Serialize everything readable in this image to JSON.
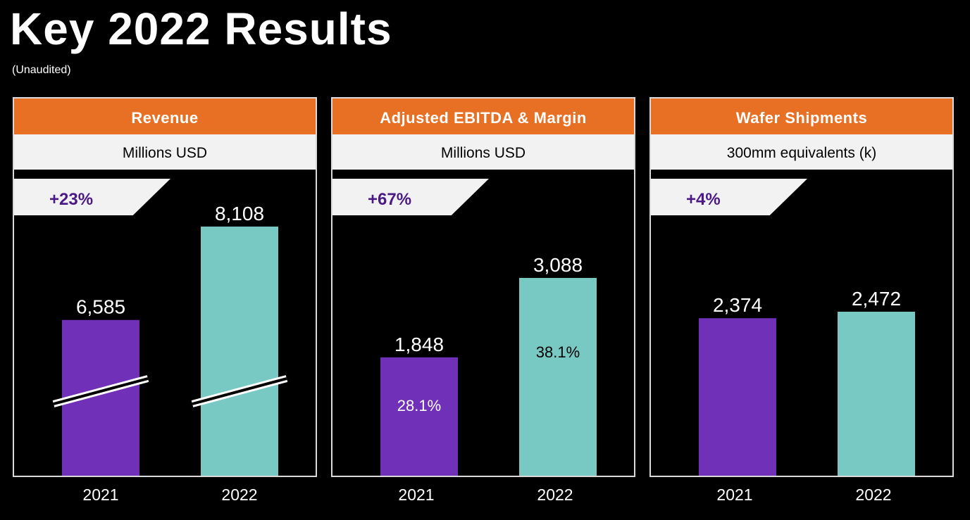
{
  "title": "Key 2022 Results",
  "subtitle": "(Unaudited)",
  "colors": {
    "header": "#e87024",
    "bar_2021": "#7030b8",
    "bar_2022": "#78c8c3",
    "growth_text": "#4b1a86"
  },
  "panels": [
    {
      "header": "Revenue",
      "units": "Millions USD",
      "growth": "+23%"
    },
    {
      "header": "Adjusted EBITDA & Margin",
      "units": "Millions USD",
      "growth": "+67%"
    },
    {
      "header": "Wafer Shipments",
      "units": "300mm equivalents (k)",
      "growth": "+4%"
    }
  ],
  "chart_data": [
    {
      "type": "bar",
      "categories": [
        "2021",
        "2022"
      ],
      "values": [
        6585,
        8108
      ],
      "value_labels": [
        "6,585",
        "8,108"
      ],
      "axis_break": true
    },
    {
      "type": "bar",
      "categories": [
        "2021",
        "2022"
      ],
      "values": [
        1848,
        3088
      ],
      "value_labels": [
        "1,848",
        "3,088"
      ],
      "inner_labels": [
        "28.1%",
        "38.1%"
      ]
    },
    {
      "type": "bar",
      "categories": [
        "2021",
        "2022"
      ],
      "values": [
        2374,
        2472
      ],
      "value_labels": [
        "2,374",
        "2,472"
      ]
    }
  ]
}
